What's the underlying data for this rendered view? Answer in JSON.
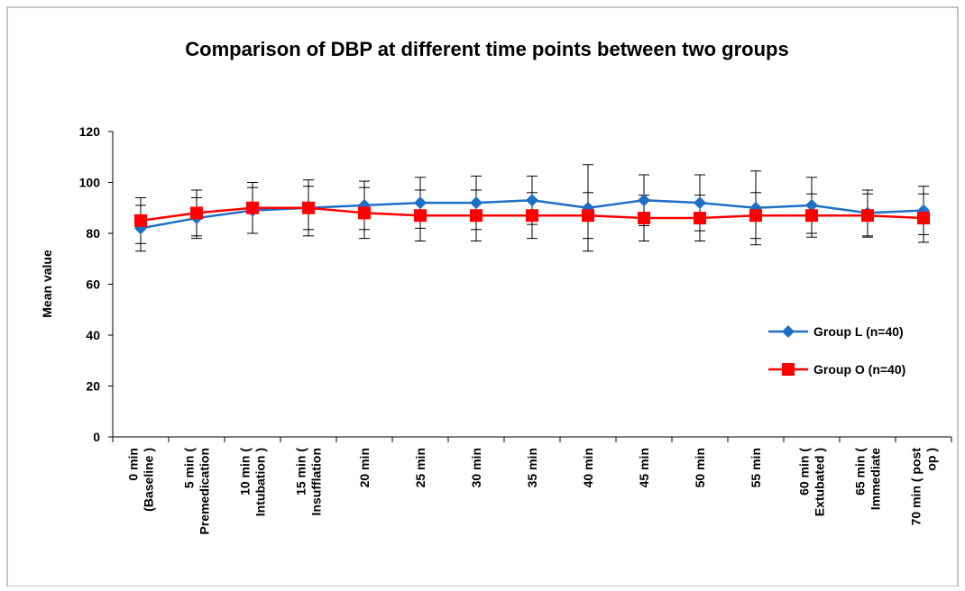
{
  "chart_data": {
    "type": "line",
    "title": "Comparison of DBP at different time points between two groups",
    "y_label": "Mean value",
    "categories": [
      [
        "0 min",
        "(Baseline )"
      ],
      [
        "5 min (",
        "Premedication"
      ],
      [
        "10 min (",
        "Intubation )"
      ],
      [
        "15 min (",
        "Insufflation"
      ],
      [
        "20 min"
      ],
      [
        "25 min"
      ],
      [
        "30 min"
      ],
      [
        "35 min"
      ],
      [
        "40 min"
      ],
      [
        "45 min"
      ],
      [
        "50 min"
      ],
      [
        "55 min"
      ],
      [
        "60 min (",
        "Extubated )"
      ],
      [
        "65 min (",
        "Immediate"
      ],
      [
        "70 min ( post",
        "op )"
      ]
    ],
    "series": [
      {
        "name": "Group L (n=40)",
        "color": "#1f6fc5",
        "marker": "diamond",
        "values": [
          82,
          86,
          89,
          90,
          91,
          92,
          92,
          93,
          90,
          93,
          92,
          90,
          91,
          88,
          89
        ],
        "errors": [
          9,
          8,
          9,
          8.5,
          9.5,
          10,
          10.5,
          9.5,
          17,
          10,
          11,
          14.5,
          11,
          9,
          9.5
        ]
      },
      {
        "name": "Group O (n=40)",
        "color": "#ff0000",
        "marker": "square",
        "values": [
          85,
          88,
          90,
          90,
          88,
          87,
          87,
          87,
          87,
          86,
          86,
          87,
          87,
          87,
          86
        ],
        "errors": [
          9,
          9,
          10,
          11,
          10,
          10,
          10,
          9,
          9,
          9,
          9,
          9,
          8.5,
          8.5,
          9.5
        ]
      }
    ],
    "ylim": [
      0,
      120
    ],
    "yticks": [
      0,
      20,
      40,
      60,
      80,
      100,
      120
    ],
    "grid": false,
    "legend": "right"
  }
}
